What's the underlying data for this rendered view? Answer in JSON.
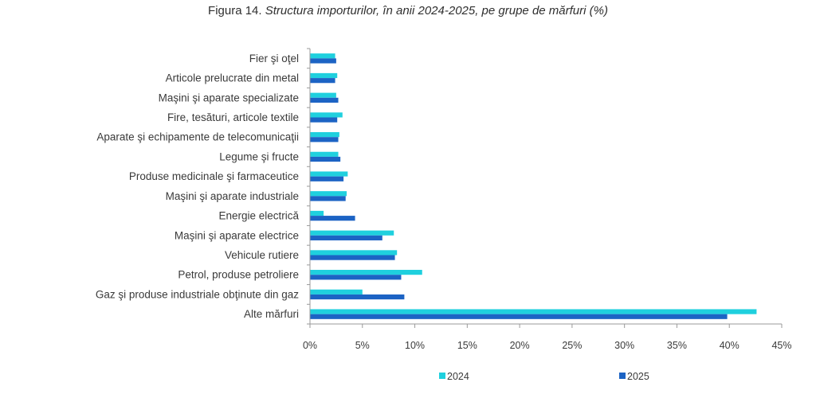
{
  "title": {
    "prefix": "Figura 14.",
    "text": "Structura importurilor, în anii 2024-2025, pe grupe de mărfuri (%)"
  },
  "chart_data": {
    "type": "bar",
    "orientation": "horizontal",
    "title": "Figura 14. Structura importurilor, în anii 2024-2025, pe grupe de mărfuri (%)",
    "categories": [
      "Fier şi oţel",
      "Articole prelucrate din metal",
      "Maşini şi aparate specializate",
      "Fire, tesături, articole textile",
      "Aparate şi echipamente de telecomunicaţii",
      "Legume şi fructe",
      "Produse medicinale şi farmaceutice",
      "Maşini şi aparate industriale",
      "Energie electrică",
      "Maşini şi aparate electrice",
      "Vehicule rutiere",
      "Petrol, produse petroliere",
      "Gaz şi produse industriale obţinute din gaz",
      "Alte mărfuri"
    ],
    "series": [
      {
        "name": "2024",
        "color": "#1fd0de",
        "values": [
          2.4,
          2.6,
          2.5,
          3.1,
          2.8,
          2.7,
          3.6,
          3.5,
          1.3,
          8.0,
          8.3,
          10.7,
          5.0,
          42.6
        ]
      },
      {
        "name": "2025",
        "color": "#1c63c4",
        "values": [
          2.5,
          2.4,
          2.7,
          2.6,
          2.7,
          2.9,
          3.2,
          3.4,
          4.3,
          6.9,
          8.1,
          8.7,
          9.0,
          39.8
        ]
      }
    ],
    "xlim": [
      0,
      45
    ],
    "xticks": [
      0,
      5,
      10,
      15,
      20,
      25,
      30,
      35,
      40,
      45
    ],
    "tick_suffix": "%",
    "xlabel": "",
    "ylabel": "",
    "grid": false,
    "legend_position": "bottom"
  }
}
